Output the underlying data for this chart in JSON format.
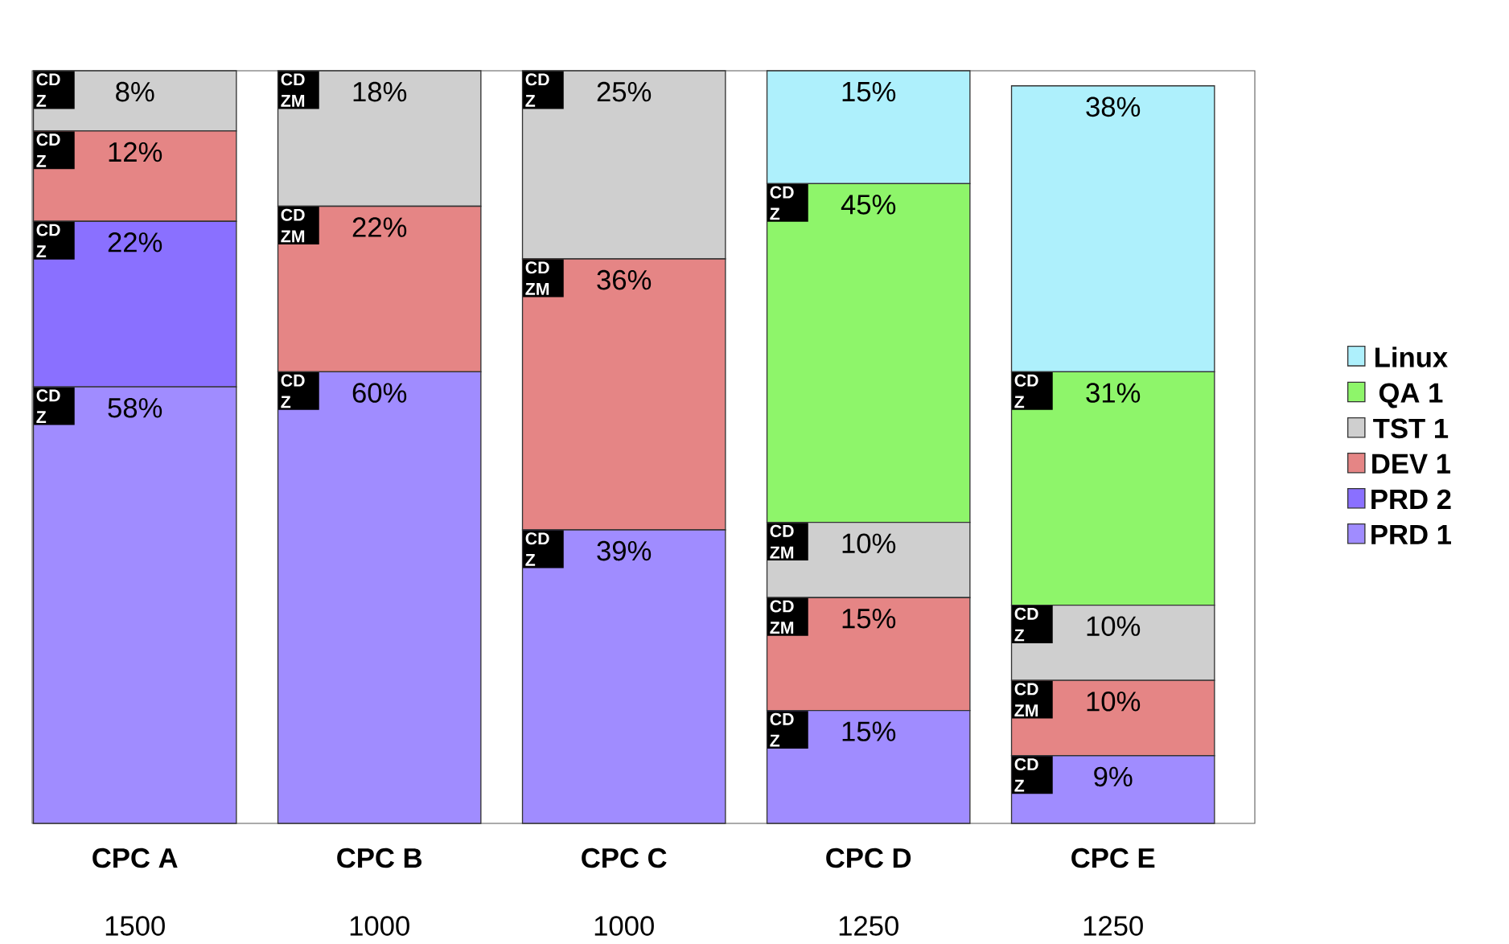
{
  "chart_data": {
    "type": "bar",
    "stacked": true,
    "legend": "right",
    "categories": [
      "CPC A",
      "CPC B",
      "CPC C",
      "CPC D",
      "CPC E"
    ],
    "ylim": [
      0,
      100
    ],
    "series": [
      {
        "name": "PRD 1",
        "color": "#a08cff",
        "values": [
          58,
          60,
          39,
          15,
          9
        ],
        "value_labels": [
          "58%",
          "60%",
          "39%",
          "15%",
          "9%"
        ]
      },
      {
        "name": "PRD 2",
        "color": "#8a70ff",
        "values": [
          22,
          null,
          null,
          null,
          null
        ],
        "value_labels": [
          "22%",
          null,
          null,
          null,
          null
        ]
      },
      {
        "name": "DEV 1",
        "color": "#e58585",
        "values": [
          12,
          22,
          36,
          15,
          10
        ],
        "value_labels": [
          "12%",
          "22%",
          "36%",
          "15%",
          "10%"
        ]
      },
      {
        "name": "TST 1",
        "color": "#cfcfcf",
        "values": [
          8,
          18,
          25,
          10,
          10
        ],
        "value_labels": [
          "8%",
          "18%",
          "25%",
          "10%",
          "10%"
        ]
      },
      {
        "name": "QA 1",
        "color": "#8ef56a",
        "values": [
          null,
          null,
          null,
          45,
          31
        ],
        "value_labels": [
          null,
          null,
          null,
          "45%",
          "31%"
        ]
      },
      {
        "name": "Linux",
        "color": "#aef0fc",
        "values": [
          null,
          null,
          null,
          15,
          38
        ],
        "value_labels": [
          null,
          null,
          null,
          "15%",
          "38%"
        ]
      }
    ],
    "annotations": [
      "1500",
      "1000",
      "1000",
      "1250",
      "1250",
      "CD Z",
      "CD Z",
      "CD Z",
      "CD Z",
      "CD Z",
      "CD ZM",
      "CD ZM",
      "CD Z",
      "CD ZM",
      "CD Z",
      "CD Z",
      "CD ZM",
      "CD ZM",
      "CD Z",
      "CD Z",
      "CD ZM",
      "CD Z",
      "CD Z"
    ]
  }
}
